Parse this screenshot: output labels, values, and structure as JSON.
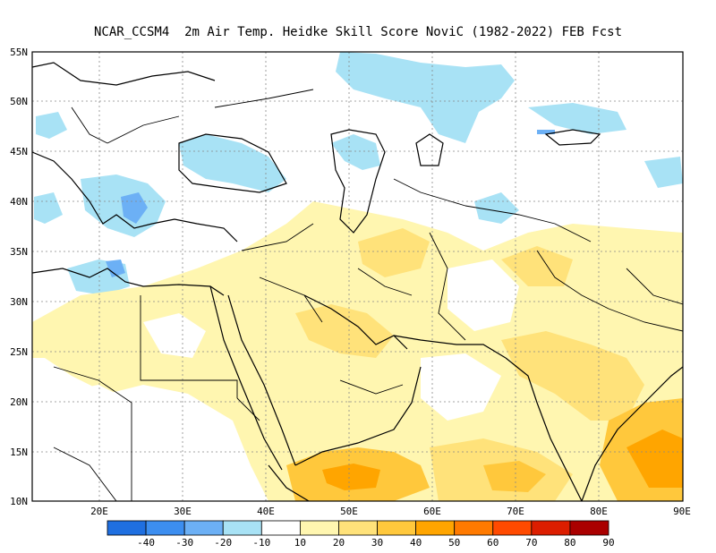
{
  "title": "NCAR_CCSM4  2m Air Temp. Heidke Skill Score NoviC (1982-2022) FEB Fcst",
  "map": {
    "lon_range": [
      12,
      90
    ],
    "lat_range": [
      10,
      55
    ],
    "lat_ticks": [
      "10N",
      "15N",
      "20N",
      "25N",
      "30N",
      "35N",
      "40N",
      "45N",
      "50N",
      "55N"
    ],
    "lon_ticks": [
      "20E",
      "30E",
      "40E",
      "50E",
      "60E",
      "70E",
      "80E",
      "90E"
    ],
    "grid": "dotted"
  },
  "colorbar": {
    "labels": [
      "-40",
      "-30",
      "-20",
      "-10",
      "10",
      "20",
      "30",
      "40",
      "50",
      "60",
      "70",
      "80",
      "90"
    ],
    "colors": [
      "#1f6fe0",
      "#3c8ef0",
      "#6cb0f5",
      "#a8e2f5",
      "#ffffff",
      "#fff6b0",
      "#ffe27a",
      "#ffc83c",
      "#ffa500",
      "#ff7a00",
      "#ff4a00",
      "#dc1e00",
      "#aa0000"
    ]
  },
  "regions": [
    {
      "name": "west-europe-neg",
      "color": "#a8e2f5"
    },
    {
      "name": "aegean-neg",
      "color": "#6cb0f5"
    },
    {
      "name": "arabia-pos",
      "color": "#fff6b0"
    },
    {
      "name": "yemen-pos",
      "color": "#ffc83c"
    },
    {
      "name": "india-pos",
      "color": "#ffe27a"
    }
  ]
}
